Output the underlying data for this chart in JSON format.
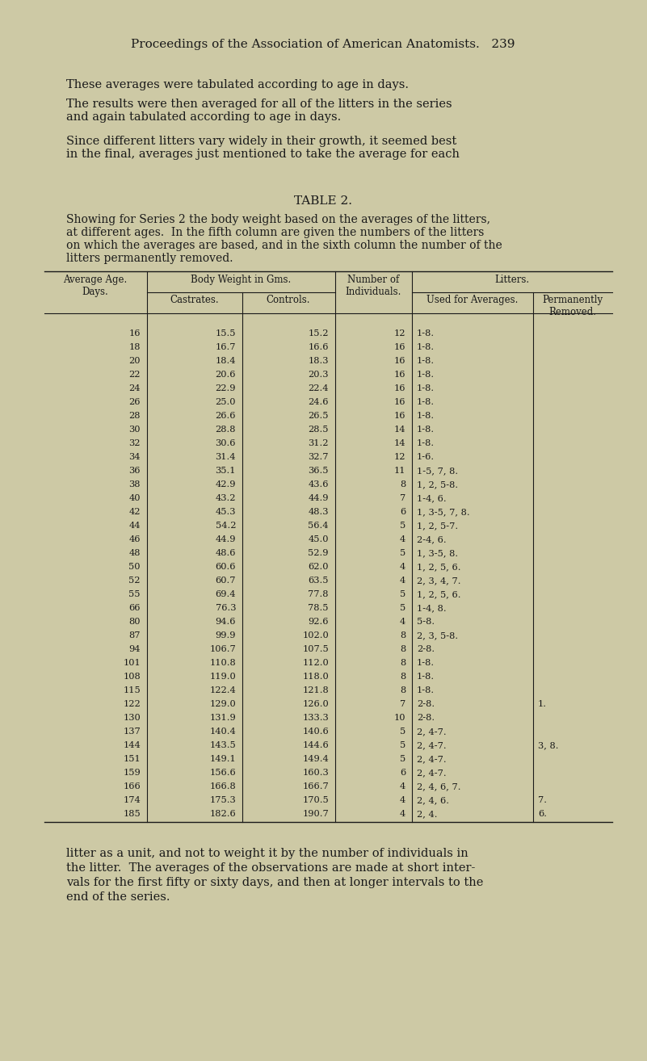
{
  "bg_color": "#cdc9a5",
  "text_color": "#1a1a1a",
  "page_header": "Proceedings of the Association of American Anatomists.   239",
  "para1": "These averages were tabulated according to age in days.",
  "para2": "The results were then averaged for all of the litters in the series\nand again tabulated according to age in days.",
  "para3": "Since different litters vary widely in their growth, it seemed best\nin the final, averages just mentioned to take the average for each",
  "table_title": "TABLE 2.",
  "table_caption_line1": "Showing for Series 2 the body weight based on the averages of the litters,",
  "table_caption_line2": "at different ages.  In the fifth column are given the numbers of the litters",
  "table_caption_line3": "on which the averages are based, and in the sixth column the number of the",
  "table_caption_line4": "litters permanently removed.",
  "rows": [
    [
      "16",
      "15.5",
      "15.2",
      "12",
      "1-8.",
      ""
    ],
    [
      "18",
      "16.7",
      "16.6",
      "16",
      "1-8.",
      ""
    ],
    [
      "20",
      "18.4",
      "18.3",
      "16",
      "1-8.",
      ""
    ],
    [
      "22",
      "20.6",
      "20.3",
      "16",
      "1-8.",
      ""
    ],
    [
      "24",
      "22.9",
      "22.4",
      "16",
      "1-8.",
      ""
    ],
    [
      "26",
      "25.0",
      "24.6",
      "16",
      "1-8.",
      ""
    ],
    [
      "28",
      "26.6",
      "26.5",
      "16",
      "1-8.",
      ""
    ],
    [
      "30",
      "28.8",
      "28.5",
      "14",
      "1-8.",
      ""
    ],
    [
      "32",
      "30.6",
      "31.2",
      "14",
      "1-8.",
      ""
    ],
    [
      "34",
      "31.4",
      "32.7",
      "12",
      "1-6.",
      ""
    ],
    [
      "36",
      "35.1",
      "36.5",
      "11",
      "1-5, 7, 8.",
      ""
    ],
    [
      "38",
      "42.9",
      "43.6",
      "8",
      "1, 2, 5-8.",
      ""
    ],
    [
      "40",
      "43.2",
      "44.9",
      "7",
      "1-4, 6.",
      ""
    ],
    [
      "42",
      "45.3",
      "48.3",
      "6",
      "1, 3-5, 7, 8.",
      ""
    ],
    [
      "44",
      "54.2",
      "56.4",
      "5",
      "1, 2, 5-7.",
      ""
    ],
    [
      "46",
      "44.9",
      "45.0",
      "4",
      "2-4, 6.",
      ""
    ],
    [
      "48",
      "48.6",
      "52.9",
      "5",
      "1, 3-5, 8.",
      ""
    ],
    [
      "50",
      "60.6",
      "62.0",
      "4",
      "1, 2, 5, 6.",
      ""
    ],
    [
      "52",
      "60.7",
      "63.5",
      "4",
      "2, 3, 4, 7.",
      ""
    ],
    [
      "55",
      "69.4",
      "77.8",
      "5",
      "1, 2, 5, 6.",
      ""
    ],
    [
      "66",
      "76.3",
      "78.5",
      "5",
      "1-4, 8.",
      ""
    ],
    [
      "80",
      "94.6",
      "92.6",
      "4",
      "5-8.",
      ""
    ],
    [
      "87",
      "99.9",
      "102.0",
      "8",
      "2, 3, 5-8.",
      ""
    ],
    [
      "94",
      "106.7",
      "107.5",
      "8",
      "2-8.",
      ""
    ],
    [
      "101",
      "110.8",
      "112.0",
      "8",
      "1-8.",
      ""
    ],
    [
      "108",
      "119.0",
      "118.0",
      "8",
      "1-8.",
      ""
    ],
    [
      "115",
      "122.4",
      "121.8",
      "8",
      "1-8.",
      ""
    ],
    [
      "122",
      "129.0",
      "126.0",
      "7",
      "2-8.",
      "1."
    ],
    [
      "130",
      "131.9",
      "133.3",
      "10",
      "2-8.",
      ""
    ],
    [
      "137",
      "140.4",
      "140.6",
      "5",
      "2, 4-7.",
      ""
    ],
    [
      "144",
      "143.5",
      "144.6",
      "5",
      "2, 4-7.",
      "3, 8."
    ],
    [
      "151",
      "149.1",
      "149.4",
      "5",
      "2, 4-7.",
      ""
    ],
    [
      "159",
      "156.6",
      "160.3",
      "6",
      "2, 4-7.",
      ""
    ],
    [
      "166",
      "166.8",
      "166.7",
      "4",
      "2, 4, 6, 7.",
      ""
    ],
    [
      "174",
      "175.3",
      "170.5",
      "4",
      "2, 4, 6.",
      "7."
    ],
    [
      "185",
      "182.6",
      "190.7",
      "4",
      "2, 4.",
      "6."
    ]
  ],
  "footer_line1": "litter as a unit, and not to weight it by the number of individuals in",
  "footer_line2": "the litter.  The averages of the observations are made at short inter-",
  "footer_line3": "vals for the first fifty or sixty days, and then at longer intervals to the",
  "footer_line4": "end of the series."
}
